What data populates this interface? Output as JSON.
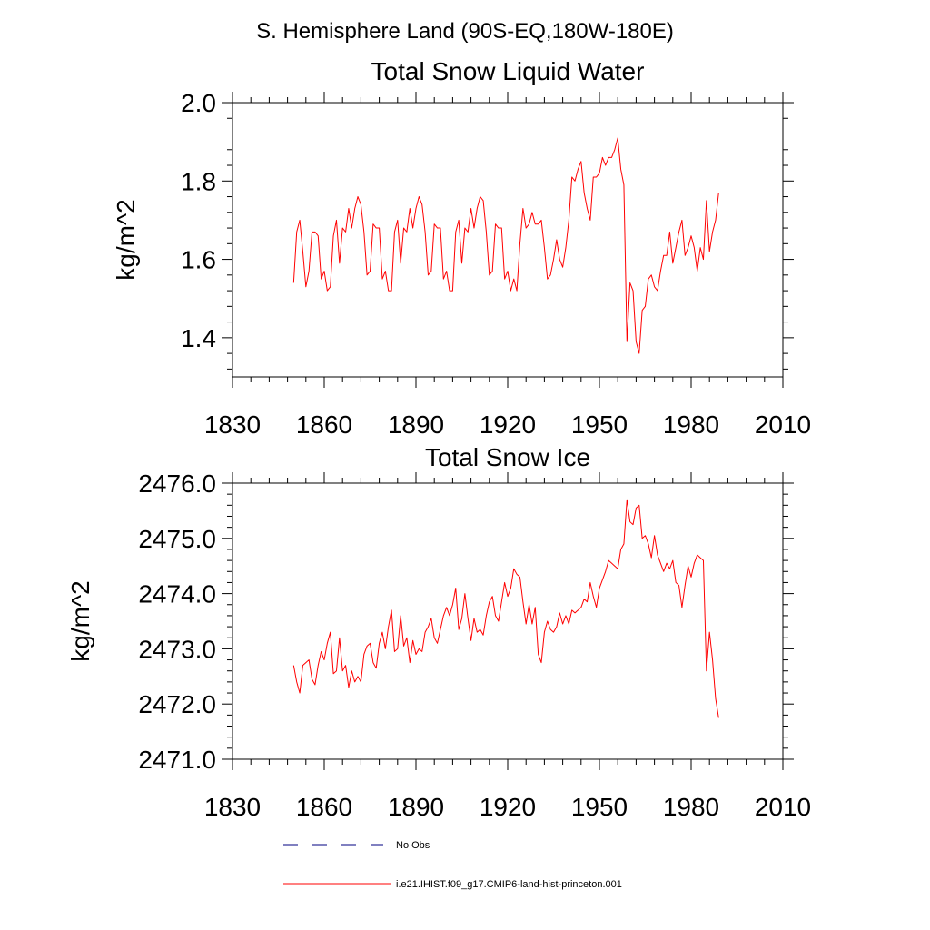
{
  "header": {
    "region_title": "S. Hemisphere Land (90S-EQ,180W-180E)"
  },
  "chart_data": [
    {
      "type": "line",
      "title": "Total Snow Liquid Water",
      "xlabel": "",
      "ylabel": "kg/m^2",
      "xlim": [
        1830,
        2010
      ],
      "ylim": [
        1.3,
        2.0
      ],
      "x_ticks": [
        1830,
        1860,
        1890,
        1920,
        1950,
        1980,
        2010
      ],
      "y_ticks": [
        1.4,
        1.6,
        1.8,
        2.0
      ],
      "y_tick_labels": [
        "1.4",
        "1.6",
        "1.8",
        "2.0"
      ],
      "grid": false,
      "series": [
        {
          "name": "i.e21.IHIST.f09_g17.CMIP6-land-hist-princeton.001",
          "color": "#ff0000",
          "x_start": 1850,
          "x_step": 1,
          "values": [
            1.54,
            1.67,
            1.7,
            1.62,
            1.53,
            1.57,
            1.67,
            1.67,
            1.66,
            1.55,
            1.57,
            1.52,
            1.53,
            1.66,
            1.7,
            1.59,
            1.68,
            1.67,
            1.73,
            1.68,
            1.73,
            1.76,
            1.74,
            1.67,
            1.56,
            1.57,
            1.69,
            1.68,
            1.68,
            1.55,
            1.57,
            1.52,
            1.52,
            1.67,
            1.7,
            1.59,
            1.68,
            1.67,
            1.73,
            1.68,
            1.73,
            1.76,
            1.74,
            1.67,
            1.56,
            1.57,
            1.69,
            1.68,
            1.68,
            1.55,
            1.57,
            1.52,
            1.52,
            1.67,
            1.7,
            1.59,
            1.68,
            1.67,
            1.73,
            1.68,
            1.73,
            1.76,
            1.75,
            1.67,
            1.56,
            1.57,
            1.69,
            1.68,
            1.68,
            1.55,
            1.57,
            1.52,
            1.55,
            1.52,
            1.64,
            1.73,
            1.68,
            1.69,
            1.72,
            1.69,
            1.69,
            1.7,
            1.63,
            1.55,
            1.56,
            1.6,
            1.65,
            1.6,
            1.58,
            1.63,
            1.7,
            1.81,
            1.8,
            1.83,
            1.85,
            1.77,
            1.73,
            1.7,
            1.81,
            1.81,
            1.82,
            1.86,
            1.84,
            1.86,
            1.86,
            1.88,
            1.91,
            1.83,
            1.79,
            1.39,
            1.54,
            1.52,
            1.39,
            1.36,
            1.47,
            1.48,
            1.55,
            1.56,
            1.53,
            1.52,
            1.57,
            1.61,
            1.61,
            1.67,
            1.59,
            1.63,
            1.67,
            1.7,
            1.61,
            1.63,
            1.66,
            1.63,
            1.57,
            1.63,
            1.6,
            1.75,
            1.62,
            1.67,
            1.7,
            1.77
          ]
        }
      ]
    },
    {
      "type": "line",
      "title": "Total Snow Ice",
      "xlabel": "",
      "ylabel": "kg/m^2",
      "xlim": [
        1830,
        2010
      ],
      "ylim": [
        2471.0,
        2476.0
      ],
      "x_ticks": [
        1830,
        1860,
        1890,
        1920,
        1950,
        1980,
        2010
      ],
      "y_ticks": [
        2471.0,
        2472.0,
        2473.0,
        2474.0,
        2475.0,
        2476.0
      ],
      "y_tick_labels": [
        "2471.0",
        "2472.0",
        "2473.0",
        "2474.0",
        "2475.0",
        "2476.0"
      ],
      "grid": false,
      "series": [
        {
          "name": "i.e21.IHIST.f09_g17.CMIP6-land-hist-princeton.001",
          "color": "#ff0000",
          "x_start": 1850,
          "x_step": 1,
          "values": [
            2472.7,
            2472.4,
            2472.2,
            2472.7,
            2472.75,
            2472.8,
            2472.45,
            2472.35,
            2472.7,
            2472.95,
            2472.8,
            2473.1,
            2473.3,
            2472.55,
            2472.6,
            2473.2,
            2472.6,
            2472.7,
            2472.3,
            2472.6,
            2472.4,
            2472.5,
            2472.4,
            2472.9,
            2473.05,
            2473.1,
            2472.75,
            2472.65,
            2473.1,
            2473.3,
            2473.0,
            2473.4,
            2473.7,
            2472.95,
            2473.0,
            2473.6,
            2473.05,
            2473.2,
            2472.75,
            2473.15,
            2472.9,
            2473.0,
            2472.95,
            2473.3,
            2473.4,
            2473.55,
            2473.2,
            2473.1,
            2473.35,
            2473.6,
            2473.75,
            2473.6,
            2473.8,
            2474.1,
            2473.35,
            2473.55,
            2474.0,
            2473.55,
            2473.15,
            2473.55,
            2473.3,
            2473.35,
            2473.25,
            2473.6,
            2473.85,
            2473.95,
            2473.6,
            2473.5,
            2473.85,
            2474.2,
            2473.95,
            2474.1,
            2474.45,
            2474.35,
            2474.3,
            2473.85,
            2473.45,
            2473.8,
            2473.45,
            2473.75,
            2472.9,
            2472.75,
            2473.3,
            2473.5,
            2473.35,
            2473.3,
            2473.4,
            2473.65,
            2473.45,
            2473.6,
            2473.45,
            2473.7,
            2473.65,
            2473.7,
            2473.75,
            2473.9,
            2473.85,
            2474.2,
            2473.95,
            2473.75,
            2474.1,
            2474.25,
            2474.4,
            2474.6,
            2474.55,
            2474.5,
            2474.45,
            2474.8,
            2474.9,
            2475.7,
            2475.3,
            2475.25,
            2475.55,
            2475.6,
            2475.0,
            2475.05,
            2474.9,
            2474.65,
            2475.05,
            2474.7,
            2474.55,
            2474.4,
            2474.55,
            2474.45,
            2474.6,
            2474.2,
            2474.15,
            2473.75,
            2474.15,
            2474.5,
            2474.3,
            2474.55,
            2474.7,
            2474.65,
            2474.6,
            2472.6,
            2473.3,
            2472.8,
            2472.1,
            2471.75
          ]
        }
      ]
    }
  ],
  "legend": {
    "entries": [
      {
        "label": "No Obs",
        "color": "#000080",
        "style": "dashed"
      },
      {
        "label": "i.e21.IHIST.f09_g17.CMIP6-land-hist-princeton.001",
        "color": "#ff0000",
        "style": "solid"
      }
    ]
  }
}
